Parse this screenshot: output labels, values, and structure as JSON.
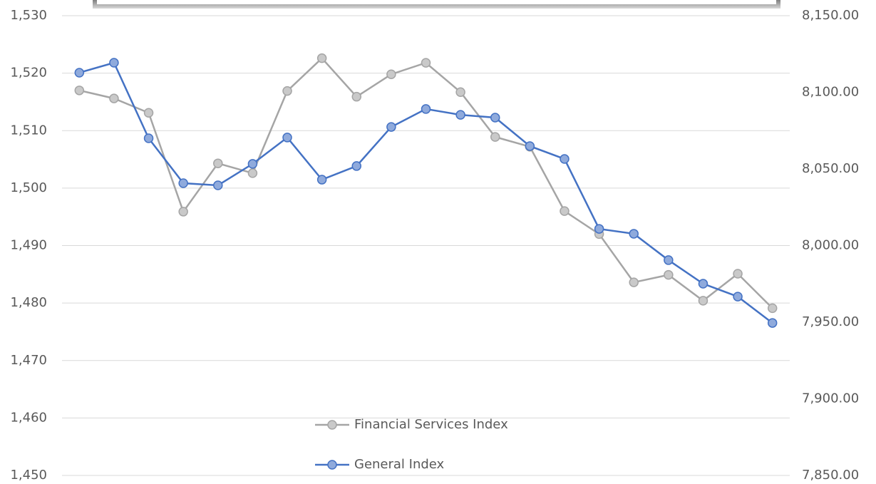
{
  "chart_data": {
    "type": "line",
    "categories": [
      null,
      null,
      null,
      null,
      null,
      null,
      null,
      null,
      null,
      null,
      null,
      null,
      null,
      null,
      null,
      null,
      null,
      null,
      null,
      null,
      null
    ],
    "series": [
      {
        "name": "Financial Services Index",
        "color": "#a5a5a5",
        "marker_fill": "#c9c9c9",
        "axis": "y",
        "values": [
          1517.0,
          1515.6,
          1513.1,
          1495.9,
          1504.3,
          1502.6,
          1516.9,
          1522.6,
          1515.9,
          1519.8,
          1521.8,
          1516.7,
          1508.9,
          1507.2,
          1496.0,
          1492.0,
          1483.6,
          1484.9,
          1480.4,
          1485.1,
          1479.1
        ]
      },
      {
        "name": "General Index",
        "color": "#4472c4",
        "marker_fill": "#8faadc",
        "axis": "y2",
        "values": [
          8112.8,
          8119.3,
          8070.0,
          8040.7,
          8039.3,
          8053.3,
          8070.5,
          8043.0,
          8051.9,
          8077.4,
          8089.1,
          8085.3,
          8083.5,
          8064.9,
          8056.5,
          8010.9,
          8007.7,
          7990.5,
          7975.1,
          7966.7,
          7949.5
        ]
      }
    ],
    "ylim": [
      1450,
      1530
    ],
    "yticks": [
      {
        "value": 1450,
        "label": "1,450"
      },
      {
        "value": 1460,
        "label": "1,460"
      },
      {
        "value": 1470,
        "label": "1,470"
      },
      {
        "value": 1480,
        "label": "1,480"
      },
      {
        "value": 1490,
        "label": "1,490"
      },
      {
        "value": 1500,
        "label": "1,500"
      },
      {
        "value": 1510,
        "label": "1,510"
      },
      {
        "value": 1520,
        "label": "1,520"
      },
      {
        "value": 1530,
        "label": "1,530"
      }
    ],
    "y2lim": [
      7850,
      8150
    ],
    "y2ticks": [
      {
        "value": 7850,
        "label": "7,850.00"
      },
      {
        "value": 7900,
        "label": "7,900.00"
      },
      {
        "value": 7950,
        "label": "7,950.00"
      },
      {
        "value": 8000,
        "label": "8,000.00"
      },
      {
        "value": 8050,
        "label": "8,050.00"
      },
      {
        "value": 8100,
        "label": "8,100.00"
      },
      {
        "value": 8150,
        "label": "8,150.00"
      }
    ],
    "grid": true,
    "legend": "bottom"
  }
}
